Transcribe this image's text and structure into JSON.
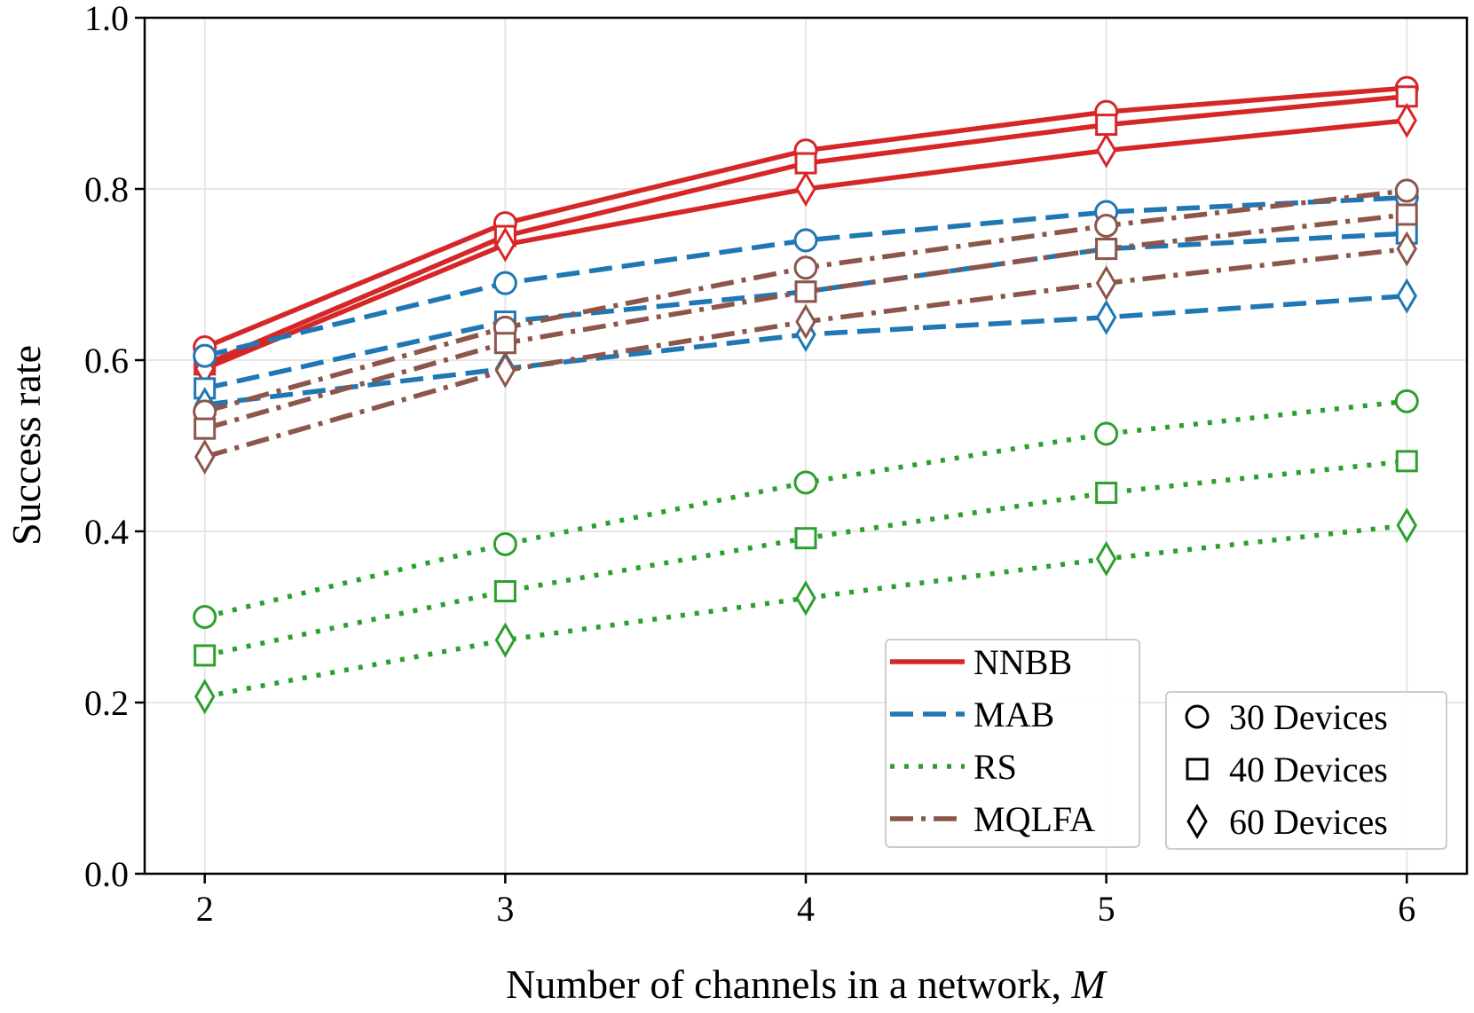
{
  "chart_data": {
    "type": "line",
    "xlabel": "Number of channels in a network, ",
    "xlabel_var": "M",
    "ylabel": "Success rate",
    "x": [
      2,
      3,
      4,
      5,
      6
    ],
    "xlim": [
      1.8,
      6.2
    ],
    "ylim": [
      0.0,
      1.0
    ],
    "xticks": [
      "2",
      "3",
      "4",
      "5",
      "6"
    ],
    "yticks": [
      "0.0",
      "0.2",
      "0.4",
      "0.6",
      "0.8",
      "1.0"
    ],
    "grid": true,
    "methods": [
      {
        "name": "NNBB",
        "color": "#d62728",
        "linestyle": "solid",
        "values": {
          "30": [
            0.615,
            0.76,
            0.845,
            0.89,
            0.918
          ],
          "40": [
            0.595,
            0.745,
            0.83,
            0.875,
            0.908
          ],
          "60": [
            0.59,
            0.735,
            0.8,
            0.845,
            0.88
          ]
        }
      },
      {
        "name": "MAB",
        "color": "#1f77b4",
        "linestyle": "dashed",
        "values": {
          "30": [
            0.605,
            0.69,
            0.74,
            0.773,
            0.79
          ],
          "40": [
            0.567,
            0.645,
            0.68,
            0.73,
            0.748
          ],
          "60": [
            0.548,
            0.59,
            0.63,
            0.65,
            0.675
          ]
        }
      },
      {
        "name": "RS",
        "color": "#2ca02c",
        "linestyle": "dotted",
        "values": {
          "30": [
            0.3,
            0.385,
            0.457,
            0.514,
            0.552
          ],
          "40": [
            0.255,
            0.33,
            0.392,
            0.445,
            0.482
          ],
          "60": [
            0.207,
            0.273,
            0.322,
            0.368,
            0.407
          ]
        }
      },
      {
        "name": "MQLFA",
        "color": "#8c564b",
        "linestyle": "dashdot",
        "values": {
          "30": [
            0.54,
            0.638,
            0.708,
            0.757,
            0.798
          ],
          "40": [
            0.52,
            0.62,
            0.68,
            0.73,
            0.77
          ],
          "60": [
            0.487,
            0.588,
            0.645,
            0.69,
            0.73
          ]
        }
      }
    ],
    "device_groups": [
      {
        "key": "30",
        "name": "30 Devices",
        "marker": "circle"
      },
      {
        "key": "40",
        "name": "40 Devices",
        "marker": "square"
      },
      {
        "key": "60",
        "name": "60 Devices",
        "marker": "diamond"
      }
    ],
    "legend_methods_position": "lower-center-right",
    "legend_markers_position": "lower-right"
  }
}
